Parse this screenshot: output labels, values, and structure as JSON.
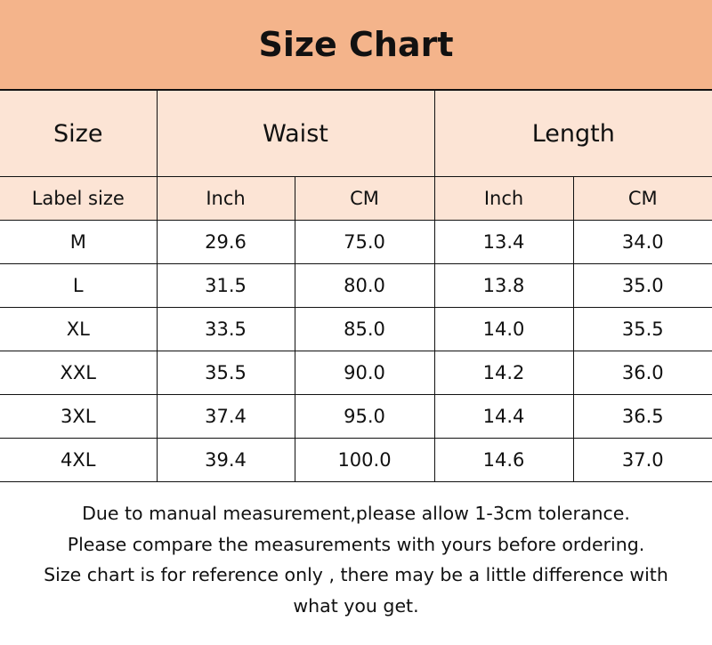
{
  "title": "Size Chart",
  "headers": {
    "size": "Size",
    "waist": "Waist",
    "length": "Length"
  },
  "subheaders": [
    "Label size",
    "Inch",
    "CM",
    "Inch",
    "CM"
  ],
  "rows": [
    [
      "M",
      "29.6",
      "75.0",
      "13.4",
      "34.0"
    ],
    [
      "L",
      "31.5",
      "80.0",
      "13.8",
      "35.0"
    ],
    [
      "XL",
      "33.5",
      "85.0",
      "14.0",
      "35.5"
    ],
    [
      "XXL",
      "35.5",
      "90.0",
      "14.2",
      "36.0"
    ],
    [
      "3XL",
      "37.4",
      "95.0",
      "14.4",
      "36.5"
    ],
    [
      "4XL",
      "39.4",
      "100.0",
      "14.6",
      "37.0"
    ]
  ],
  "notes": [
    "Due to manual measurement,please allow 1-3cm tolerance.",
    "Please compare the measurements with yours before ordering.",
    "Size chart is for reference only , there may be a little difference with",
    "what you get."
  ]
}
